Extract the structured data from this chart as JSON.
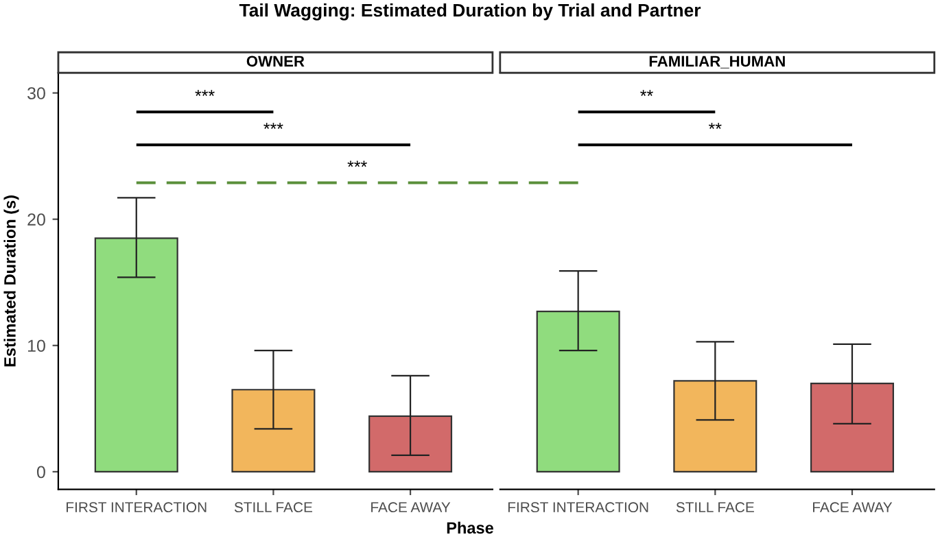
{
  "chart_data": [
    {
      "type": "bar",
      "subtitle": "Tail Wagging: Estimated Duration by Trial and Partner",
      "title": "OWNER",
      "xlabel": "Phase",
      "ylabel": "Estimated Duration (s)",
      "categories": [
        "FIRST INTERACTION",
        "STILL FACE",
        "FACE AWAY"
      ],
      "values": [
        18.5,
        6.5,
        4.4
      ],
      "colors": [
        "#90dc7e",
        "#f2b65c",
        "#d26a6a"
      ],
      "errors": [
        [
          15.4,
          21.7
        ],
        [
          3.4,
          9.6
        ],
        [
          1.3,
          7.6
        ]
      ],
      "ylim": [
        -1.4,
        31.6
      ],
      "yticks": [
        0,
        10,
        20,
        30
      ],
      "tick_labels": "xy",
      "annotations": [
        "***",
        "***",
        "***"
      ]
    },
    {
      "type": "bar",
      "title": "FAMILIAR_HUMAN",
      "categories": [
        "FIRST INTERACTION",
        "STILL FACE",
        "FACE AWAY"
      ],
      "values": [
        12.7,
        7.2,
        7.0
      ],
      "colors": [
        "#90dc7e",
        "#f2b65c",
        "#d26a6a"
      ],
      "errors": [
        [
          9.6,
          15.9
        ],
        [
          4.1,
          10.3
        ],
        [
          3.8,
          10.1
        ]
      ],
      "ylim": [
        -1.4,
        31.6
      ],
      "yticks": [
        0,
        10,
        20,
        30
      ],
      "tick_labels": "x",
      "annotations": [
        "**",
        "**"
      ]
    }
  ]
}
